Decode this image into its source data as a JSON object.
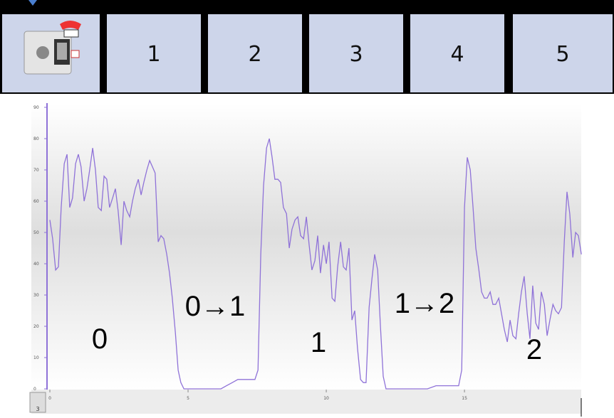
{
  "tabs": [
    "1",
    "2",
    "3",
    "4",
    "5"
  ],
  "port_label": "3",
  "chart_data": {
    "type": "line",
    "annotations": [
      "0",
      "0→1",
      "1",
      "1→2",
      "2"
    ],
    "xlim": [
      0,
      19.25
    ],
    "xticks": [
      0,
      5,
      10,
      15
    ],
    "ylim": [
      0,
      92
    ],
    "yticks": [
      0,
      10,
      20,
      30,
      40,
      50,
      60,
      70,
      80,
      90
    ],
    "grid": false,
    "series": [
      {
        "color": "#8f72d8",
        "x": [
          0,
          0.1,
          0.21,
          0.31,
          0.41,
          0.52,
          0.62,
          0.72,
          0.82,
          0.93,
          1.03,
          1.13,
          1.24,
          1.34,
          1.44,
          1.55,
          1.65,
          1.75,
          1.86,
          1.96,
          2.06,
          2.16,
          2.27,
          2.37,
          2.47,
          2.58,
          2.68,
          2.78,
          2.89,
          2.99,
          3.09,
          3.2,
          3.3,
          3.4,
          3.51,
          3.61,
          3.71,
          3.81,
          3.92,
          4.02,
          4.12,
          4.23,
          4.33,
          4.43,
          4.54,
          4.64,
          4.74,
          4.85,
          4.95,
          5.15,
          5.41,
          5.67,
          5.93,
          6.19,
          6.39,
          6.6,
          6.8,
          7.01,
          7.22,
          7.42,
          7.53,
          7.63,
          7.73,
          7.84,
          7.94,
          8.04,
          8.14,
          8.25,
          8.35,
          8.45,
          8.56,
          8.66,
          8.76,
          8.87,
          8.97,
          9.07,
          9.18,
          9.28,
          9.38,
          9.48,
          9.59,
          9.69,
          9.79,
          9.9,
          10.0,
          10.1,
          10.21,
          10.31,
          10.41,
          10.52,
          10.62,
          10.72,
          10.82,
          10.93,
          11.03,
          11.13,
          11.24,
          11.34,
          11.44,
          11.55,
          11.65,
          11.75,
          11.86,
          11.96,
          12.06,
          12.16,
          12.27,
          12.63,
          13.14,
          13.66,
          13.97,
          14.28,
          14.59,
          14.79,
          14.9,
          15.0,
          15.1,
          15.21,
          15.31,
          15.41,
          15.52,
          15.62,
          15.72,
          15.82,
          15.93,
          16.03,
          16.13,
          16.24,
          16.34,
          16.44,
          16.55,
          16.65,
          16.75,
          16.86,
          16.96,
          17.06,
          17.16,
          17.27,
          17.37,
          17.47,
          17.58,
          17.68,
          17.78,
          17.89,
          17.99,
          18.09,
          18.2,
          18.3,
          18.4,
          18.51,
          18.61,
          18.71,
          18.81,
          18.92,
          19.02,
          19.12,
          19.23
        ],
        "values": [
          54,
          48,
          38,
          39,
          58,
          72,
          75,
          58,
          61,
          72,
          75,
          71,
          60,
          64,
          70,
          77,
          70,
          58,
          57,
          68,
          67,
          58,
          61,
          64,
          57,
          46,
          60,
          57,
          55,
          60,
          64,
          67,
          62,
          66,
          70,
          73,
          71,
          69,
          47,
          49,
          48,
          43,
          37,
          29,
          18,
          6,
          2,
          0,
          0,
          0,
          0,
          0,
          0,
          0,
          1,
          2,
          3,
          3,
          3,
          3,
          6,
          43,
          65,
          77,
          80,
          74,
          67,
          67,
          66,
          58,
          56,
          45,
          51,
          54,
          55,
          49,
          48,
          55,
          46,
          38,
          41,
          49,
          37,
          46,
          40,
          47,
          29,
          28,
          39,
          47,
          39,
          38,
          45,
          22,
          25,
          13,
          3,
          2,
          2,
          26,
          35,
          43,
          38,
          20,
          4,
          0,
          0,
          0,
          0,
          0,
          1,
          1,
          1,
          1,
          6,
          58,
          74,
          70,
          58,
          45,
          38,
          31,
          29,
          29,
          31,
          27,
          27,
          29,
          24,
          19,
          15,
          22,
          17,
          16,
          24,
          31,
          36,
          24,
          16,
          33,
          21,
          19,
          31,
          27,
          17,
          22,
          27,
          25,
          24,
          26,
          47,
          63,
          56,
          42,
          50,
          49,
          43
        ]
      }
    ]
  }
}
